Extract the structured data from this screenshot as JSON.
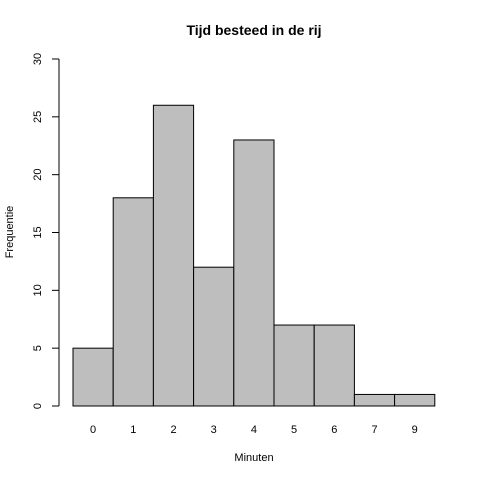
{
  "chart_data": {
    "type": "bar",
    "title": "Tijd besteed in de rij",
    "xlabel": "Minuten",
    "ylabel": "Frequentie",
    "categories": [
      "0",
      "1",
      "2",
      "3",
      "4",
      "5",
      "6",
      "7",
      "9"
    ],
    "values": [
      5,
      18,
      26,
      12,
      23,
      7,
      7,
      1,
      1
    ],
    "ylim": [
      0,
      30
    ],
    "yticks": [
      0,
      5,
      10,
      15,
      20,
      25,
      30
    ],
    "grid": false,
    "colors": {
      "bar_fill": "#bebebe",
      "bar_stroke": "#000000"
    }
  }
}
